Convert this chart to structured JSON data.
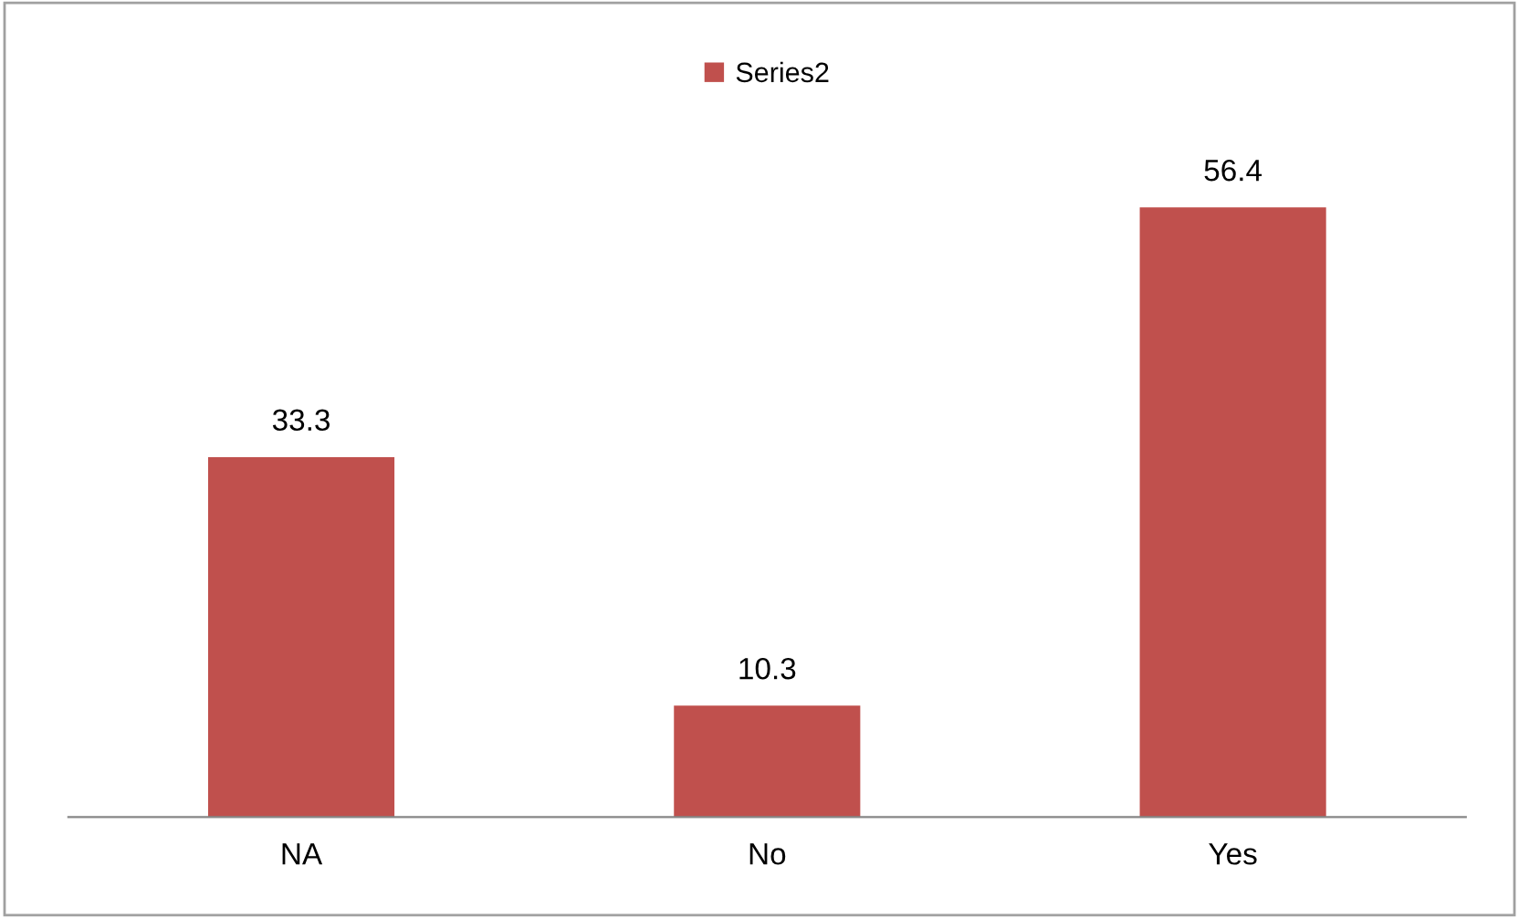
{
  "chart_data": {
    "type": "bar",
    "categories": [
      "NA",
      "No",
      "Yes"
    ],
    "series": [
      {
        "name": "Series2",
        "color": "#c0504d",
        "values": [
          33.3,
          10.3,
          56.4
        ]
      }
    ],
    "data_labels": true,
    "legend": "top",
    "grid": false
  }
}
